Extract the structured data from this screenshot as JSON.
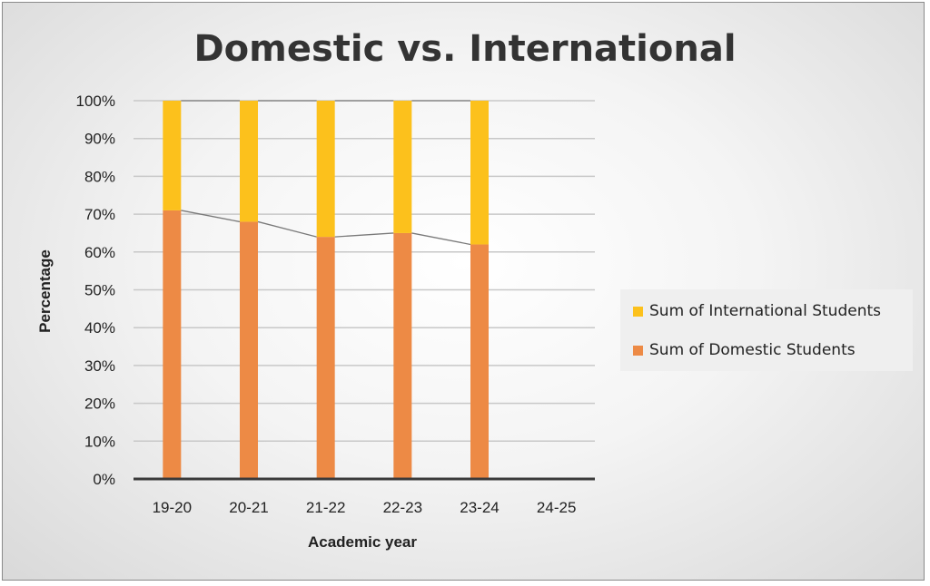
{
  "chart_data": {
    "type": "bar",
    "stacked": true,
    "title": "Domestic vs. International",
    "xlabel": "Academic year",
    "ylabel": "Percentage",
    "categories": [
      "19-20",
      "20-21",
      "21-22",
      "22-23",
      "23-24",
      "24-25"
    ],
    "ylim": [
      0,
      100
    ],
    "yticks": [
      "0%",
      "10%",
      "20%",
      "30%",
      "40%",
      "50%",
      "60%",
      "70%",
      "80%",
      "90%",
      "100%"
    ],
    "series": [
      {
        "name": "Sum of Domestic Students",
        "color": "#ed8a45",
        "values": [
          71,
          68,
          64,
          65,
          62,
          null
        ]
      },
      {
        "name": "Sum of International Students",
        "color": "#fcc11c",
        "values": [
          29,
          32,
          36,
          35,
          38,
          null
        ]
      }
    ],
    "series_lines": true,
    "grid": true,
    "legend_position": "right"
  }
}
